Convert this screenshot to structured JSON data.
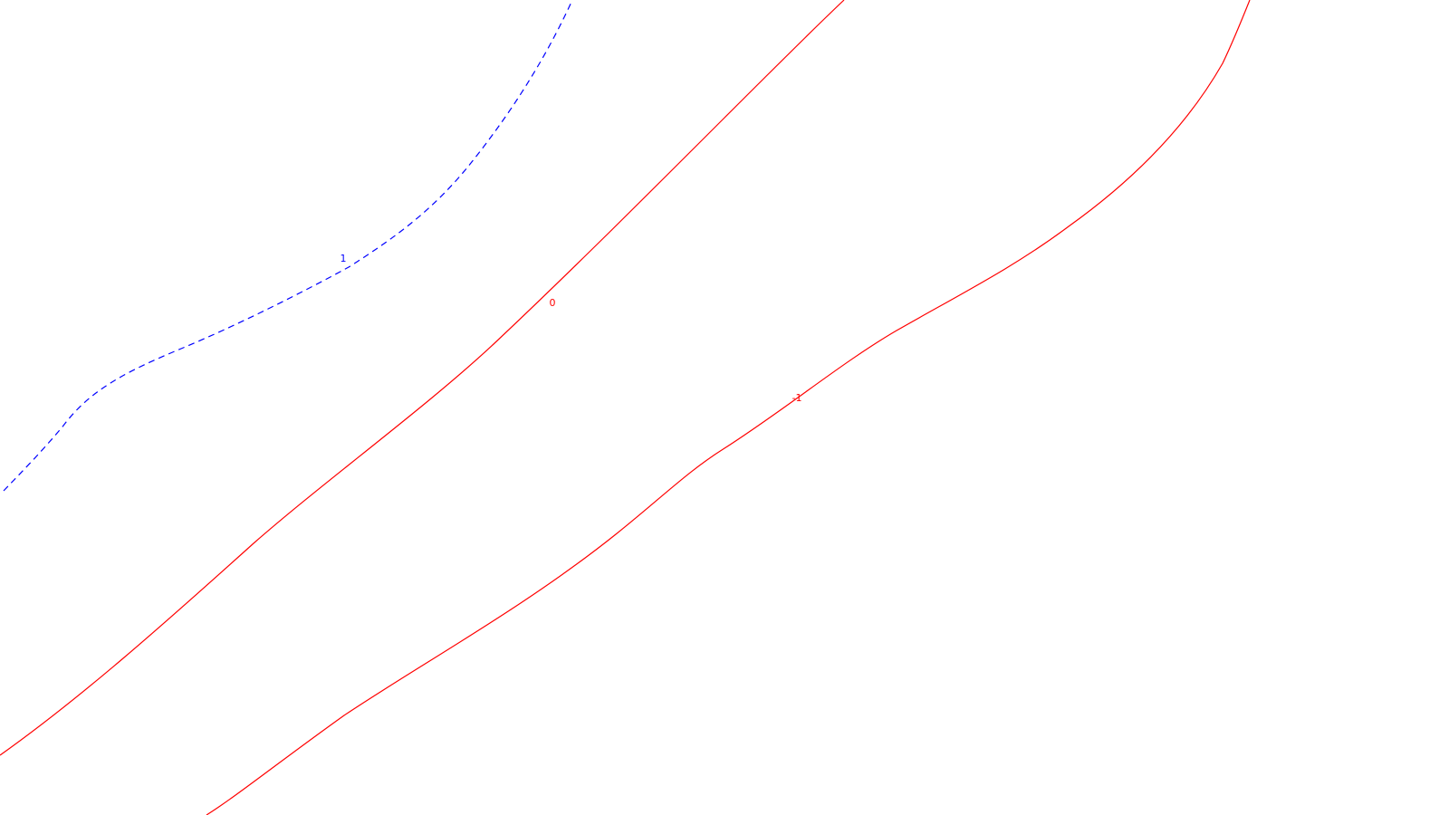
{
  "contours": [
    {
      "id": "contour-1",
      "label": "1",
      "color": "#0000ff",
      "style": "dashed"
    },
    {
      "id": "contour-0",
      "label": "0",
      "color": "#ff0000",
      "style": "solid"
    },
    {
      "id": "contour-minus-1",
      "label": "-1",
      "color": "#ff0000",
      "style": "solid"
    }
  ]
}
